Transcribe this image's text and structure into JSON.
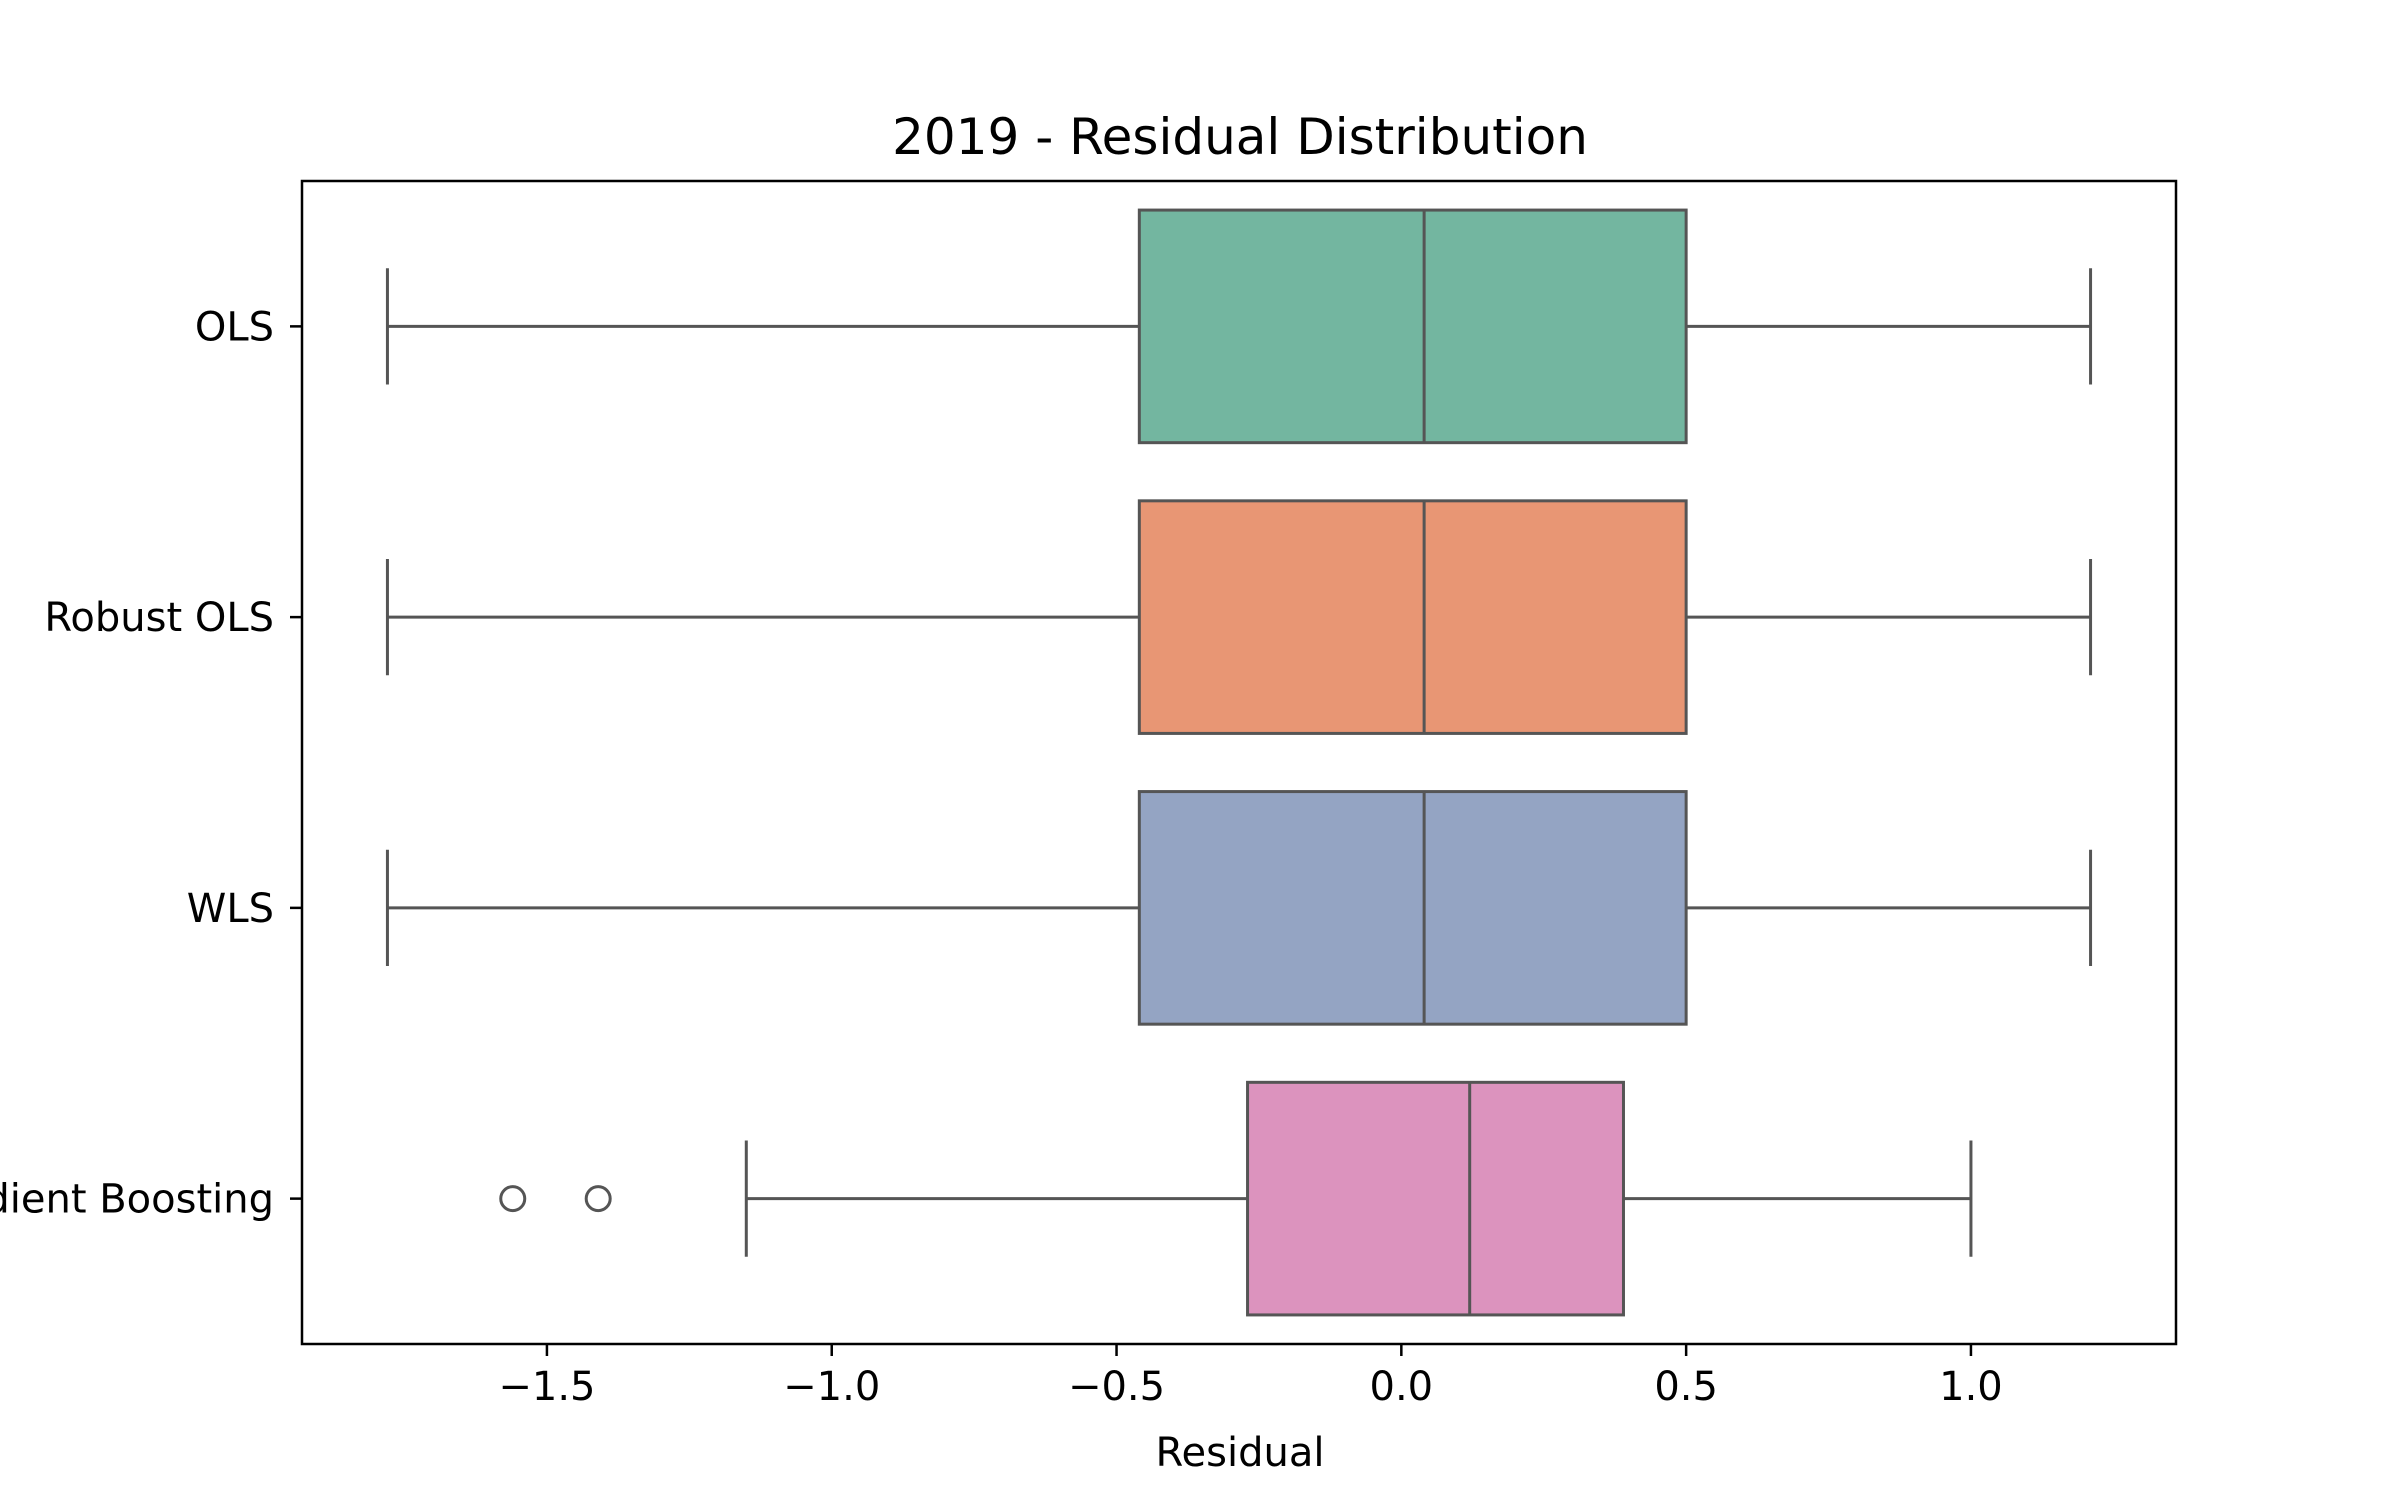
{
  "chart_data": {
    "type": "boxplot",
    "title": "2019 - Residual Distribution",
    "xlabel": "Residual",
    "ylabel": "",
    "xlim": [
      -1.93,
      1.36
    ],
    "xticks": [
      -1.5,
      -1.0,
      -0.5,
      0.0,
      0.5,
      1.0
    ],
    "xtick_labels": [
      "−1.5",
      "−1.0",
      "−0.5",
      "0.0",
      "0.5",
      "1.0"
    ],
    "categories": [
      "OLS",
      "Robust OLS",
      "WLS",
      "Gradient Boosting"
    ],
    "series": [
      {
        "label": "OLS",
        "whisker_low": -1.78,
        "q1": -0.46,
        "median": 0.04,
        "q3": 0.5,
        "whisker_high": 1.21,
        "outliers": [],
        "color": "#73b6a0"
      },
      {
        "label": "Robust OLS",
        "whisker_low": -1.78,
        "q1": -0.46,
        "median": 0.04,
        "q3": 0.5,
        "whisker_high": 1.21,
        "outliers": [],
        "color": "#e89674"
      },
      {
        "label": "WLS",
        "whisker_low": -1.78,
        "q1": -0.46,
        "median": 0.04,
        "q3": 0.5,
        "whisker_high": 1.21,
        "outliers": [],
        "color": "#94a4c3"
      },
      {
        "label": "Gradient Boosting",
        "whisker_low": -1.15,
        "q1": -0.27,
        "median": 0.12,
        "q3": 0.39,
        "whisker_high": 1.0,
        "outliers": [
          -1.56,
          -1.41
        ],
        "color": "#dc93be"
      }
    ],
    "line_color": "#555555",
    "grid": false,
    "legend": "none"
  }
}
